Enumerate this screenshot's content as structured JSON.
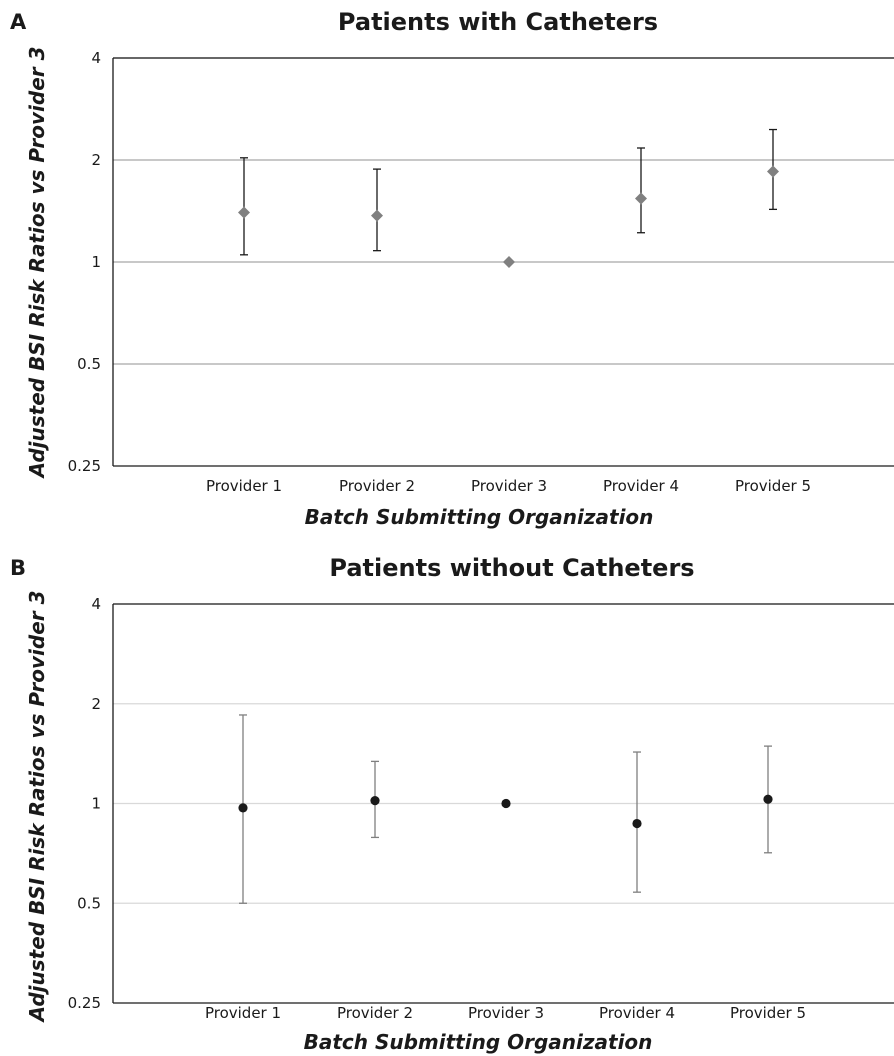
{
  "chart_data": [
    {
      "panel": "A",
      "type": "scatter",
      "title": "Patients with Catheters",
      "xlabel": "Batch Submitting Organization",
      "ylabel": "Adjusted BSI Risk Ratios vs Provider 3",
      "y_scale": "log2",
      "ylim": [
        0.25,
        4
      ],
      "yticks": [
        0.25,
        0.5,
        1,
        2,
        4
      ],
      "ytick_labels": [
        "0.25",
        "0.5",
        "1",
        "2",
        "4"
      ],
      "grid": true,
      "categories": [
        "Provider 1",
        "Provider 2",
        "Provider 3",
        "Provider 4",
        "Provider 5"
      ],
      "values": [
        1.4,
        1.37,
        1.0,
        1.54,
        1.85
      ],
      "ci_low": [
        1.05,
        1.08,
        null,
        1.22,
        1.43
      ],
      "ci_high": [
        2.03,
        1.88,
        null,
        2.17,
        2.46
      ],
      "marker": "diamond",
      "marker_color": "#808080",
      "errorbar_color": "#1a1a1a",
      "grid_color": "#a6a6a6"
    },
    {
      "panel": "B",
      "type": "scatter",
      "title": "Patients without Catheters",
      "xlabel": "Batch Submitting Organization",
      "ylabel": "Adjusted BSI Risk Ratios vs Provider 3",
      "y_scale": "log2",
      "ylim": [
        0.25,
        4
      ],
      "yticks": [
        0.25,
        0.5,
        1,
        2,
        4
      ],
      "ytick_labels": [
        "0.25",
        "0.5",
        "1",
        "2",
        "4"
      ],
      "grid": true,
      "categories": [
        "Provider 1",
        "Provider 2",
        "Provider 3",
        "Provider 4",
        "Provider 5"
      ],
      "values": [
        0.97,
        1.02,
        1.0,
        0.87,
        1.03
      ],
      "ci_low": [
        0.5,
        0.79,
        null,
        0.54,
        0.71
      ],
      "ci_high": [
        1.85,
        1.34,
        null,
        1.43,
        1.49
      ],
      "marker": "circle",
      "marker_color": "#1a1a1a",
      "errorbar_color": "#7f7f7f",
      "grid_color": "#d9d9d9"
    }
  ]
}
